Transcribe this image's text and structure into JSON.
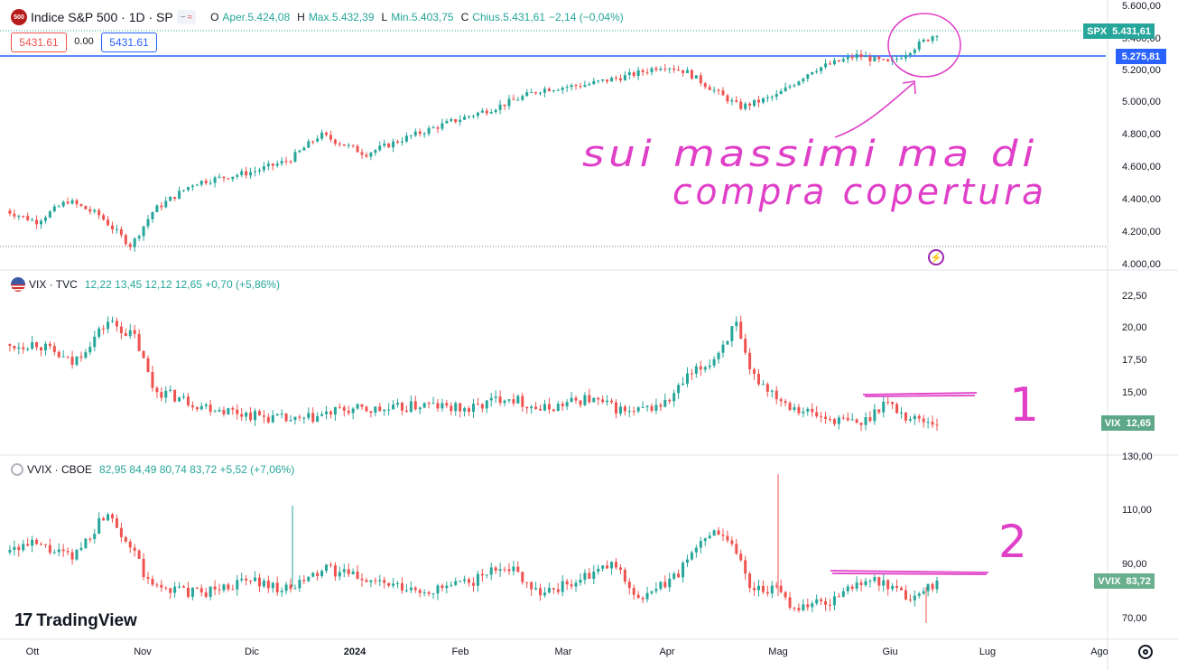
{
  "main_pane": {
    "symbol_badge": "500",
    "title": "Indice S&P 500 · 1D · SP",
    "ohlc": [
      {
        "label": "O",
        "value": "Aper.5.424,08"
      },
      {
        "label": "H",
        "value": "Max.5.432,39"
      },
      {
        "label": "L",
        "value": "Min.5.403,75"
      },
      {
        "label": "C",
        "value": "Chius.5.431,61"
      }
    ],
    "change": "−2,14 (−0,04%)",
    "bid": "5431.61",
    "spread": "0.00",
    "ask": "5431.61",
    "y_ticks": [
      "5.600,00",
      "5.400,00",
      "5.200,00",
      "5.000,00",
      "4.800,00",
      "4.600,00",
      "4.400,00",
      "4.200,00",
      "4.000,00"
    ],
    "last_tag": {
      "symbol": "SPX",
      "value": "5.431,61",
      "color": "#26a69a"
    },
    "hline_tag": {
      "value": "5.275,81",
      "color": "#2962ff"
    },
    "annotation_line1": "sui massimi ma di",
    "annotation_line2": "compra copertura"
  },
  "vix_pane": {
    "title": "VIX · TVC",
    "values": "12,22  13,45  12,12  12,65  +0,70 (+5,86%)",
    "y_ticks": [
      "22,50",
      "20,00",
      "17,50",
      "15,00"
    ],
    "last_tag": {
      "symbol": "VIX",
      "value": "12,65"
    },
    "annotation": "1"
  },
  "vvix_pane": {
    "title": "VVIX · CBOE",
    "values": "82,95  84,49  80,74  83,72  +5,52 (+7,06%)",
    "y_ticks": [
      "130,00",
      "110,00",
      "90,00",
      "70,00"
    ],
    "last_tag": {
      "symbol": "VVIX",
      "value": "83,72"
    },
    "annotation": "2"
  },
  "time_axis": [
    "Ott",
    "Nov",
    "Dic",
    "2024",
    "Feb",
    "Mar",
    "Apr",
    "Mag",
    "Giu",
    "Lug",
    "Ago"
  ],
  "brand": "TradingView",
  "colors": {
    "up": "#26a69a",
    "down": "#ef5350",
    "hline": "#2962ff",
    "annotation": "#e040c8"
  },
  "chart_data": [
    {
      "type": "line",
      "title": "Indice S&P 500",
      "x": [
        "Ott",
        "Nov",
        "Dic",
        "2024",
        "Feb",
        "Mar",
        "Apr",
        "Mag",
        "Giu"
      ],
      "series": [
        {
          "name": "SPX",
          "values": [
            4300,
            4200,
            4560,
            4760,
            4960,
            5120,
            5240,
            5080,
            5320
          ]
        }
      ],
      "ylim": [
        4000,
        5600
      ]
    },
    {
      "type": "line",
      "title": "VIX",
      "x": [
        "Ott",
        "Nov",
        "Dic",
        "2024",
        "Feb",
        "Mar",
        "Apr",
        "Mag",
        "Giu"
      ],
      "series": [
        {
          "name": "VIX",
          "values": [
            18.5,
            15.2,
            13.0,
            13.4,
            14.0,
            14.4,
            14.0,
            16.5,
            12.8
          ]
        }
      ],
      "ylim": [
        11,
        23
      ]
    },
    {
      "type": "line",
      "title": "VVIX",
      "x": [
        "Ott",
        "Nov",
        "Dic",
        "2024",
        "Feb",
        "Mar",
        "Apr",
        "Mag",
        "Giu"
      ],
      "series": [
        {
          "name": "VVIX",
          "values": [
            95,
            83,
            85,
            84,
            82,
            84,
            82,
            85,
            82
          ]
        }
      ],
      "ylim": [
        65,
        135
      ]
    }
  ]
}
